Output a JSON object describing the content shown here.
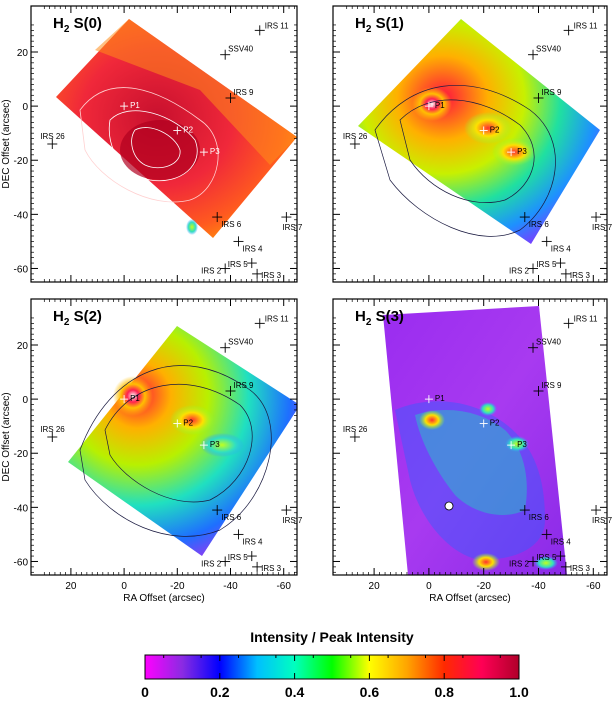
{
  "figure": {
    "colorbar_title": "Intensity / Peak Intensity",
    "colorbar_ticks": [
      "0",
      "0.2",
      "0.4",
      "0.6",
      "0.8",
      "1.0"
    ],
    "colorbar_stops": [
      "#ff00ff",
      "#8a2be2",
      "#0000ff",
      "#00bfff",
      "#00ffbf",
      "#00ff00",
      "#ffff00",
      "#ffa500",
      "#ff2a00",
      "#ff0055",
      "#b0002a"
    ]
  },
  "chart_data": [
    {
      "type": "heatmap",
      "title_main": "H",
      "title_sub": "2",
      "title_rest": " S(0)",
      "xlabel": "",
      "ylabel": "DEC Offset (arcsec)",
      "xlim": [
        35,
        -65
      ],
      "ylim": [
        -65,
        37
      ],
      "xticks": [],
      "yticks": [
        "20",
        "0",
        "-20",
        "-40",
        "-60"
      ],
      "peaks": [
        {
          "name": "P1",
          "x": 0,
          "y": 0
        },
        {
          "name": "P2",
          "x": -20,
          "y": -9
        },
        {
          "name": "P3",
          "x": -30,
          "y": -17
        }
      ],
      "sources": [
        {
          "name": "IRS 11",
          "x": -51,
          "y": 28
        },
        {
          "name": "SSV40",
          "x": -38,
          "y": 19
        },
        {
          "name": "IRS 9",
          "x": -40,
          "y": 3
        },
        {
          "name": "IRS 26",
          "x": 27,
          "y": -14
        },
        {
          "name": "IRS 6",
          "x": -35,
          "y": -41
        },
        {
          "name": "IRS 7",
          "x": -61,
          "y": -41
        },
        {
          "name": "IRS 4",
          "x": -43,
          "y": -50
        },
        {
          "name": "IRS 2",
          "x": -38,
          "y": -60
        },
        {
          "name": "IRS 5",
          "x": -48,
          "y": -58
        },
        {
          "name": "IRS 3",
          "x": -50,
          "y": -62
        }
      ]
    },
    {
      "type": "heatmap",
      "title_main": "H",
      "title_sub": "2",
      "title_rest": " S(1)",
      "xlabel": "",
      "ylabel": "",
      "xlim": [
        35,
        -65
      ],
      "ylim": [
        -65,
        37
      ],
      "xticks": [],
      "yticks": [],
      "peaks": [
        {
          "name": "P1",
          "x": 0,
          "y": 0
        },
        {
          "name": "P2",
          "x": -20,
          "y": -9
        },
        {
          "name": "P3",
          "x": -30,
          "y": -17
        }
      ],
      "sources": [
        {
          "name": "IRS 11",
          "x": -51,
          "y": 28
        },
        {
          "name": "SSV40",
          "x": -38,
          "y": 19
        },
        {
          "name": "IRS 9",
          "x": -40,
          "y": 3
        },
        {
          "name": "IRS 26",
          "x": 27,
          "y": -14
        },
        {
          "name": "IRS 6",
          "x": -35,
          "y": -41
        },
        {
          "name": "IRS 7",
          "x": -61,
          "y": -41
        },
        {
          "name": "IRS 4",
          "x": -43,
          "y": -50
        },
        {
          "name": "IRS 2",
          "x": -38,
          "y": -60
        },
        {
          "name": "IRS 5",
          "x": -48,
          "y": -58
        },
        {
          "name": "IRS 3",
          "x": -50,
          "y": -62
        }
      ]
    },
    {
      "type": "heatmap",
      "title_main": "H",
      "title_sub": "2",
      "title_rest": " S(2)",
      "xlabel": "RA Offset (arcsec)",
      "ylabel": "DEC Offset (arcsec)",
      "xlim": [
        35,
        -65
      ],
      "ylim": [
        -65,
        37
      ],
      "xticks": [
        "20",
        "0",
        "-20",
        "-40",
        "-60"
      ],
      "yticks": [
        "20",
        "0",
        "-20",
        "-40",
        "-60"
      ],
      "peaks": [
        {
          "name": "P1",
          "x": 0,
          "y": 0
        },
        {
          "name": "P2",
          "x": -20,
          "y": -9
        },
        {
          "name": "P3",
          "x": -30,
          "y": -17
        }
      ],
      "sources": [
        {
          "name": "IRS 11",
          "x": -51,
          "y": 28
        },
        {
          "name": "SSV40",
          "x": -38,
          "y": 19
        },
        {
          "name": "IRS 9",
          "x": -40,
          "y": 3
        },
        {
          "name": "IRS 26",
          "x": 27,
          "y": -14
        },
        {
          "name": "IRS 6",
          "x": -35,
          "y": -41
        },
        {
          "name": "IRS 7",
          "x": -61,
          "y": -41
        },
        {
          "name": "IRS 4",
          "x": -43,
          "y": -50
        },
        {
          "name": "IRS 2",
          "x": -38,
          "y": -60
        },
        {
          "name": "IRS 5",
          "x": -48,
          "y": -58
        },
        {
          "name": "IRS 3",
          "x": -50,
          "y": -62
        }
      ]
    },
    {
      "type": "heatmap",
      "title_main": "H",
      "title_sub": "2",
      "title_rest": " S(3)",
      "xlabel": "RA Offset (arcsec)",
      "ylabel": "",
      "xlim": [
        35,
        -65
      ],
      "ylim": [
        -65,
        37
      ],
      "xticks": [
        "20",
        "0",
        "-20",
        "-40",
        "-60"
      ],
      "yticks": [],
      "peaks": [
        {
          "name": "P1",
          "x": 0,
          "y": 0
        },
        {
          "name": "P2",
          "x": -20,
          "y": -9
        },
        {
          "name": "P3",
          "x": -30,
          "y": -17
        }
      ],
      "sources": [
        {
          "name": "IRS 11",
          "x": -51,
          "y": 28
        },
        {
          "name": "SSV40",
          "x": -38,
          "y": 19
        },
        {
          "name": "IRS 9",
          "x": -40,
          "y": 3
        },
        {
          "name": "IRS 26",
          "x": 27,
          "y": -14
        },
        {
          "name": "IRS 6",
          "x": -35,
          "y": -41
        },
        {
          "name": "IRS 7",
          "x": -61,
          "y": -41
        },
        {
          "name": "IRS 4",
          "x": -43,
          "y": -50
        },
        {
          "name": "IRS 2",
          "x": -38,
          "y": -60
        },
        {
          "name": "IRS 5",
          "x": -48,
          "y": -58
        },
        {
          "name": "IRS 3",
          "x": -50,
          "y": -62
        }
      ]
    }
  ]
}
